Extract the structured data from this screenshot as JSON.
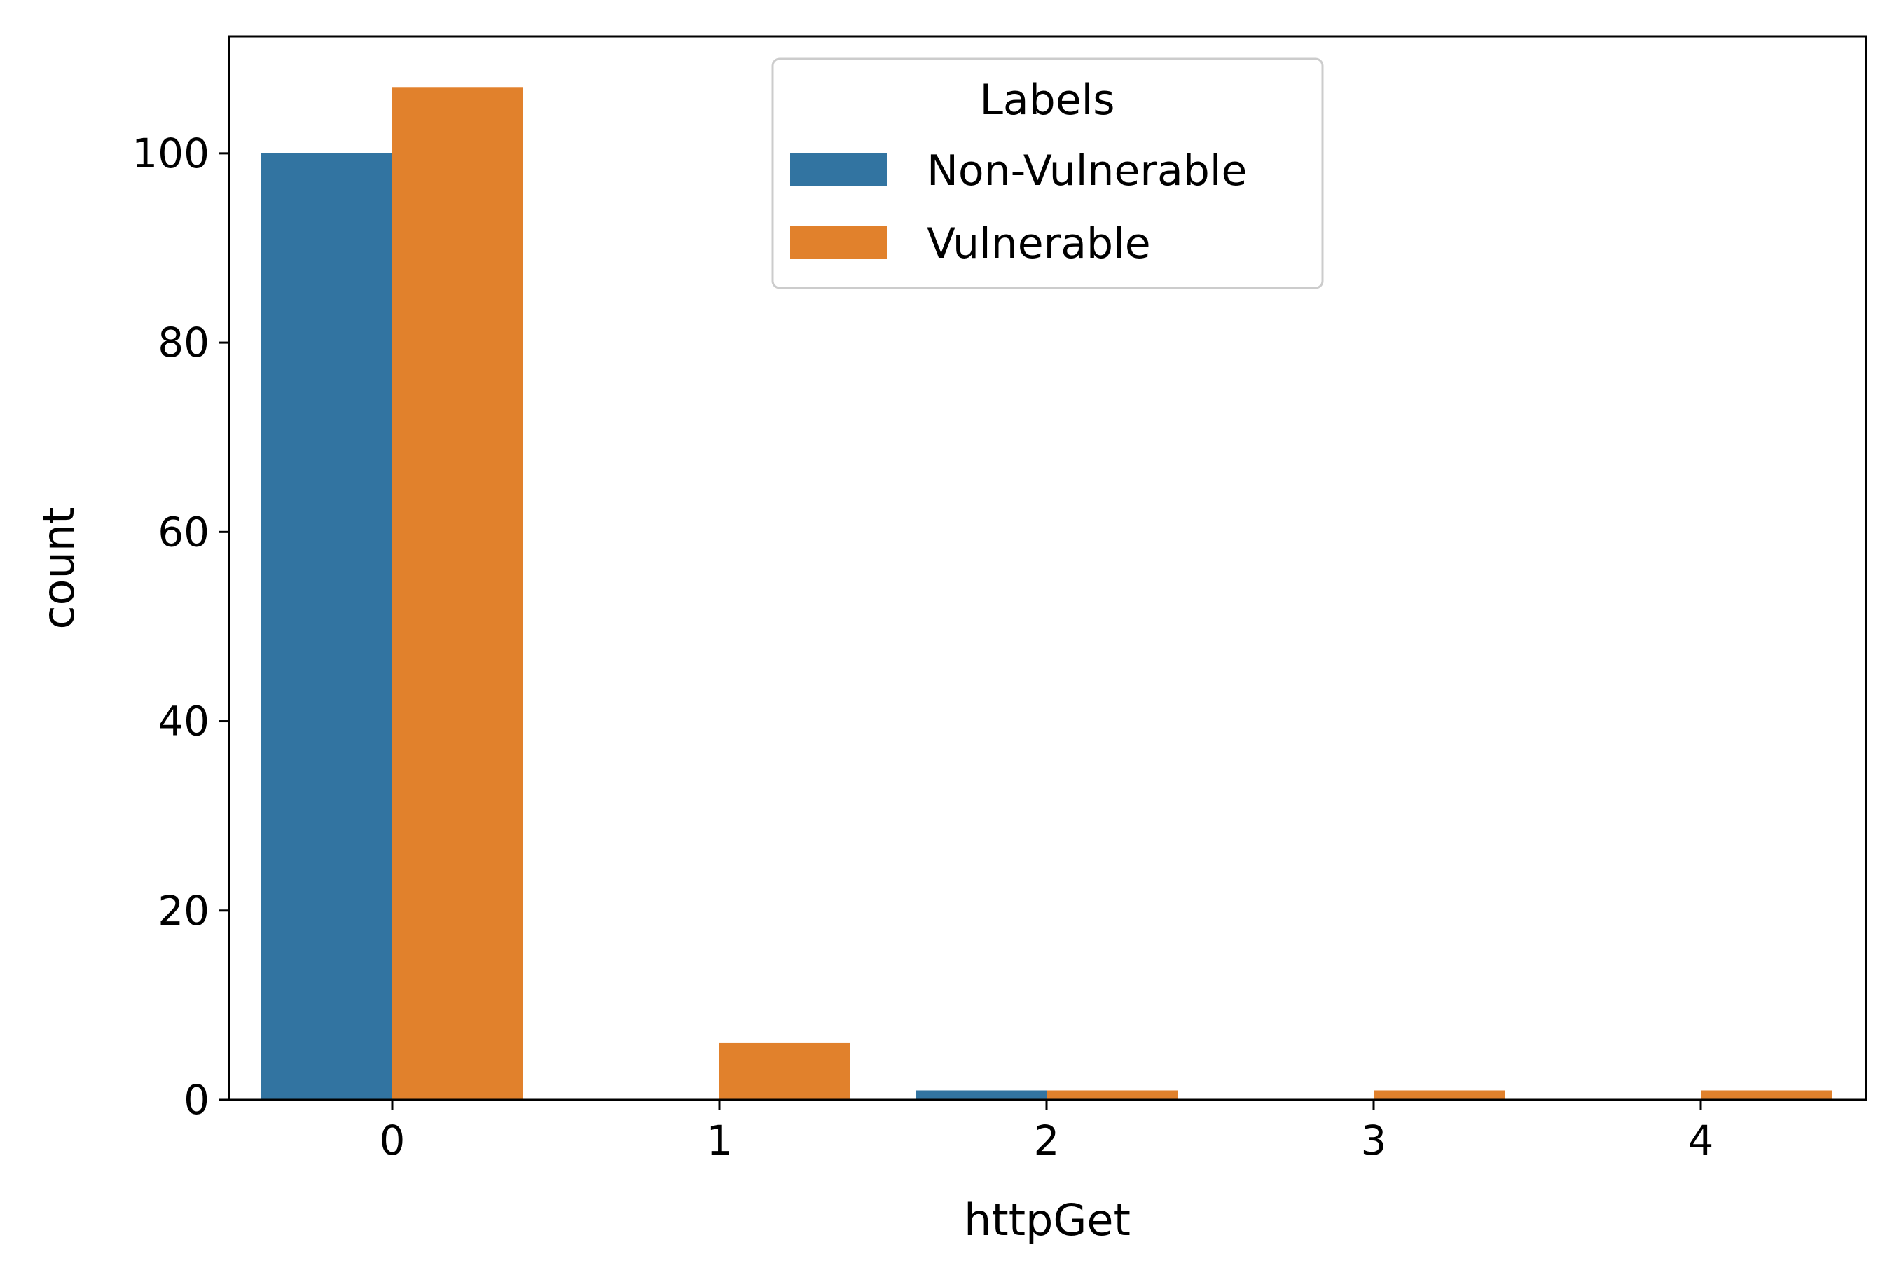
{
  "chart_data": {
    "type": "bar",
    "xlabel": "httpGet",
    "ylabel": "count",
    "categories": [
      "0",
      "1",
      "2",
      "3",
      "4"
    ],
    "series": [
      {
        "name": "Non-Vulnerable",
        "color": "#3274a1",
        "values": [
          100,
          0,
          1,
          0,
          0
        ]
      },
      {
        "name": "Vulnerable",
        "color": "#e1812c",
        "values": [
          107,
          6,
          1,
          1,
          1
        ]
      }
    ],
    "ylim": [
      0,
      112.35
    ],
    "yticks": [
      0,
      20,
      40,
      60,
      80,
      100
    ],
    "legend": {
      "title": "Labels",
      "placement": "upper-center"
    },
    "grid": false
  }
}
